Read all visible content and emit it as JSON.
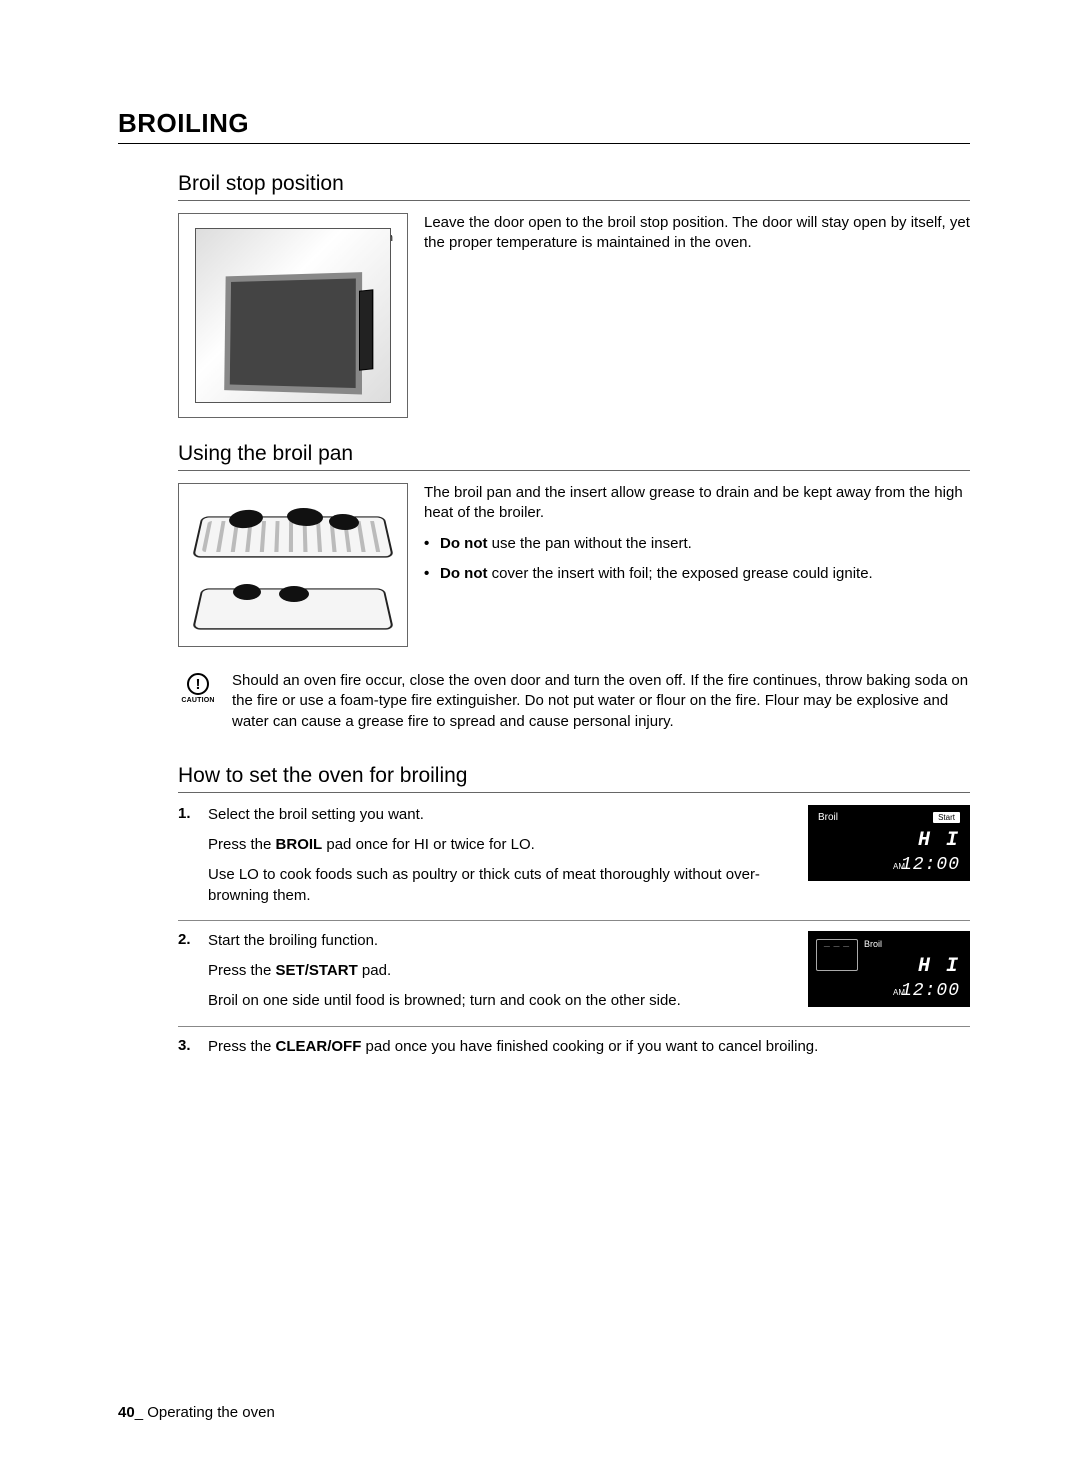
{
  "page_title": "BROILING",
  "section1": {
    "title": "Broil stop position",
    "illus_label": "Broil stop position",
    "para": "Leave the door open to the broil stop position. The door will stay open by itself, yet the proper temperature is maintained in the oven."
  },
  "section2": {
    "title": "Using the broil pan",
    "para": "The broil pan and the insert allow grease to drain and be kept away from the high heat of the broiler.",
    "bullet1_bold": "Do not",
    "bullet1_rest": " use the pan without the insert.",
    "bullet2_bold": "Do not",
    "bullet2_rest": " cover the insert with foil; the exposed grease could ignite."
  },
  "caution": {
    "label": "CAUTION",
    "mark": "!",
    "text": "Should an oven fire occur, close the oven door and turn the oven off. If the fire continues, throw baking soda on the fire or use a foam-type fire extinguisher. Do not put water or flour on the fire. Flour may be explosive and water can cause a grease fire to spread and cause personal injury."
  },
  "section3": {
    "title": "How to set the oven for broiling",
    "steps": [
      {
        "num": "1.",
        "line1": "Select the broil setting you want.",
        "line2_pre": "Press the ",
        "line2_bold": "BROIL",
        "line2_post": " pad once for HI or twice for LO.",
        "line3": "Use LO to cook foods such as poultry or thick cuts of meat thoroughly without over-browning them."
      },
      {
        "num": "2.",
        "line1": "Start the broiling function.",
        "line2_pre": "Press the ",
        "line2_bold": "SET/START",
        "line2_post": " pad.",
        "line3": "Broil on one side until food is browned; turn and cook on the other side."
      },
      {
        "num": "3.",
        "line1_pre": "Press the ",
        "line1_bold": "CLEAR/OFF",
        "line1_post": " pad once you have finished cooking or if you want to cancel broiling."
      }
    ]
  },
  "display": {
    "broil_label": "Broil",
    "start_label": "Start",
    "hi": "H I",
    "am": "AM",
    "clock": "12:00"
  },
  "footer": {
    "page_num": "40",
    "sep": "_ ",
    "chapter": "Operating the oven"
  }
}
